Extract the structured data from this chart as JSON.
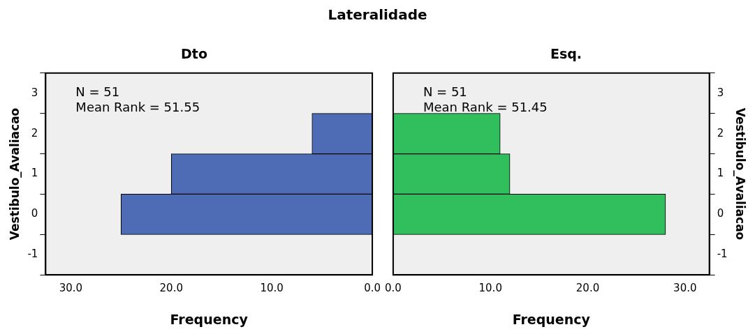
{
  "chart_data": [
    {
      "type": "bar",
      "orientation": "horizontal",
      "title": "Lateralidade",
      "subtitle": "Dto",
      "xlabel": "Frequency",
      "ylabel": "Vestibulo_Avaliacao",
      "categories": [
        "3",
        "2",
        "1",
        "0",
        "-1"
      ],
      "values": [
        null,
        6,
        20,
        25,
        null
      ],
      "color": "#4e6cb5",
      "xlim": [
        32.5,
        0
      ],
      "xticks": [
        {
          "value": 30,
          "label": "30.0"
        },
        {
          "value": 20,
          "label": "20.0"
        },
        {
          "value": 10,
          "label": "10.0"
        },
        {
          "value": 0,
          "label": "0.0"
        }
      ],
      "annotations": [
        "N = 51",
        "Mean Rank = 51.55"
      ],
      "grid": false,
      "legend": false
    },
    {
      "type": "bar",
      "orientation": "horizontal",
      "subtitle": "Esq.",
      "xlabel": "Frequency",
      "ylabel": "Vestibulo_Avaliacao",
      "categories": [
        "3",
        "2",
        "1",
        "0",
        "-1"
      ],
      "values": [
        null,
        11,
        12,
        28,
        null
      ],
      "color": "#31be5c",
      "xlim": [
        0,
        32.5
      ],
      "xticks": [
        {
          "value": 0,
          "label": "0.0"
        },
        {
          "value": 10,
          "label": "10.0"
        },
        {
          "value": 20,
          "label": "20.0"
        },
        {
          "value": 30,
          "label": "30.0"
        }
      ],
      "annotations": [
        "N = 51",
        "Mean Rank = 51.45"
      ],
      "grid": false,
      "legend": false
    }
  ]
}
